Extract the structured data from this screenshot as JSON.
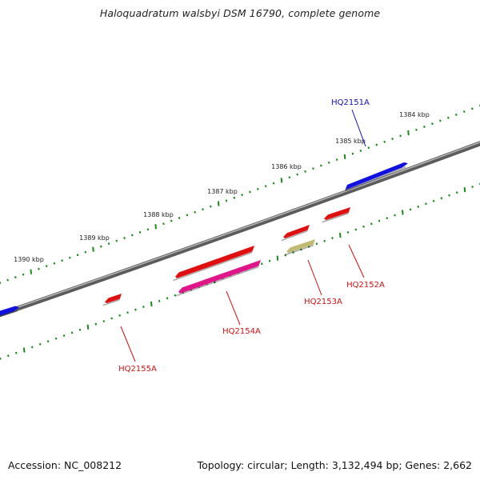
{
  "title": "Haloquadratum walsbyi DSM 16790, complete genome",
  "footer": {
    "accession": "Accession: NC_008212",
    "summary": "Topology: circular; Length: 3,132,494 bp; Genes: 2,662"
  },
  "scale": {
    "unit_labels": [
      "1384 kbp",
      "1385 kbp",
      "1386 kbp",
      "1387 kbp",
      "1388 kbp",
      "1389 kbp",
      "1390 kbp"
    ]
  },
  "genes": [
    {
      "id": "HQ2151A",
      "label": "HQ2151A",
      "strand": "forward",
      "color": "#1010e0"
    },
    {
      "id": "HQ2152A",
      "label": "HQ2152A",
      "strand": "reverse",
      "color": "#e01010"
    },
    {
      "id": "HQ2153A",
      "label": "HQ2153A",
      "strand": "reverse",
      "color": "#e01010"
    },
    {
      "id": "HQ2154A",
      "label": "HQ2154A",
      "strand": "reverse",
      "color": "#e01010"
    },
    {
      "id": "HQ2155A",
      "label": "HQ2155A",
      "strand": "reverse",
      "color": "#e01010"
    }
  ],
  "unlabeled_features": [
    {
      "kind": "forward-gene-partial",
      "color": "#1010e0"
    },
    {
      "kind": "reverse-feature",
      "color": "#e0158a"
    },
    {
      "kind": "reverse-feature",
      "color": "#c0bb70"
    }
  ],
  "colors": {
    "backbone": "#7a7a7a",
    "tick": "#1a8a1a",
    "forward_label": "#1010c0",
    "reverse_label": "#cc1010"
  }
}
